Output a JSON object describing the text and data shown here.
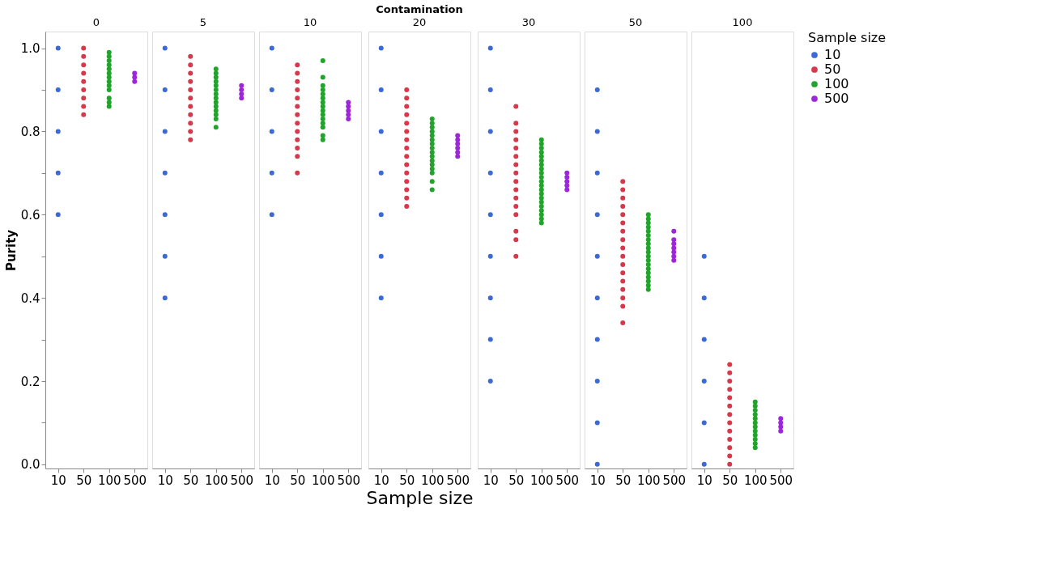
{
  "chart_data": [
    {
      "type": "scatter",
      "title": "0",
      "ylabel": "Purity",
      "categories": [
        "10",
        "50",
        "100",
        "500"
      ],
      "ylim": [
        -0.01,
        1.04
      ],
      "yticks": [
        {
          "value": 0,
          "label": "0.0"
        },
        {
          "value": 0.1,
          "label": null
        },
        {
          "value": 0.2,
          "label": "0.2"
        },
        {
          "value": 0.3,
          "label": null
        },
        {
          "value": 0.4,
          "label": "0.4"
        },
        {
          "value": 0.5,
          "label": null
        },
        {
          "value": 0.6,
          "label": "0.6"
        },
        {
          "value": 0.7,
          "label": null
        },
        {
          "value": 0.8,
          "label": "0.8"
        },
        {
          "value": 0.9,
          "label": null
        },
        {
          "value": 1,
          "label": "1.0"
        }
      ],
      "grid": false,
      "marker": "circle",
      "series": [
        {
          "color": "#3b6ad8",
          "x": [
            "10",
            "10",
            "10",
            "10",
            "10"
          ],
          "values": [
            1.0,
            0.9,
            0.8,
            0.7,
            0.6
          ]
        },
        {
          "color": "#d8384a",
          "x": [
            "50",
            "50",
            "50",
            "50",
            "50",
            "50",
            "50",
            "50",
            "50"
          ],
          "values": [
            1.0,
            0.98,
            0.96,
            0.94,
            0.92,
            0.9,
            0.88,
            0.86,
            0.84
          ]
        },
        {
          "color": "#22a32c",
          "x": [
            "100",
            "100",
            "100",
            "100",
            "100",
            "100",
            "100",
            "100",
            "100",
            "100",
            "100",
            "100",
            "100"
          ],
          "values": [
            0.99,
            0.98,
            0.97,
            0.96,
            0.95,
            0.94,
            0.93,
            0.92,
            0.91,
            0.9,
            0.88,
            0.87,
            0.86
          ]
        },
        {
          "color": "#9b27d8",
          "x": [
            "500",
            "500",
            "500"
          ],
          "values": [
            0.94,
            0.93,
            0.92
          ]
        }
      ]
    },
    {
      "type": "scatter",
      "title": "5",
      "categories": [
        "10",
        "50",
        "100",
        "500"
      ],
      "ylim": [
        -0.01,
        1.04
      ],
      "tick_labels": "x",
      "grid": false,
      "marker": "circle",
      "series": [
        {
          "color": "#3b6ad8",
          "x": [
            "10",
            "10",
            "10",
            "10",
            "10",
            "10",
            "10"
          ],
          "values": [
            1.0,
            0.9,
            0.8,
            0.7,
            0.6,
            0.5,
            0.4
          ]
        },
        {
          "color": "#d8384a",
          "x": [
            "50",
            "50",
            "50",
            "50",
            "50",
            "50",
            "50",
            "50",
            "50",
            "50",
            "50"
          ],
          "values": [
            0.98,
            0.96,
            0.94,
            0.92,
            0.9,
            0.88,
            0.86,
            0.84,
            0.82,
            0.8,
            0.78
          ]
        },
        {
          "color": "#22a32c",
          "x": [
            "100",
            "100",
            "100",
            "100",
            "100",
            "100",
            "100",
            "100",
            "100",
            "100",
            "100",
            "100",
            "100",
            "100"
          ],
          "values": [
            0.95,
            0.94,
            0.93,
            0.92,
            0.91,
            0.9,
            0.89,
            0.88,
            0.87,
            0.86,
            0.85,
            0.84,
            0.83,
            0.81
          ]
        },
        {
          "color": "#9b27d8",
          "x": [
            "500",
            "500",
            "500",
            "500"
          ],
          "values": [
            0.91,
            0.9,
            0.89,
            0.88
          ]
        }
      ]
    },
    {
      "type": "scatter",
      "title": "10",
      "categories": [
        "10",
        "50",
        "100",
        "500"
      ],
      "ylim": [
        -0.01,
        1.04
      ],
      "tick_labels": "x",
      "grid": false,
      "marker": "circle",
      "series": [
        {
          "color": "#3b6ad8",
          "x": [
            "10",
            "10",
            "10",
            "10",
            "10"
          ],
          "values": [
            1.0,
            0.9,
            0.8,
            0.7,
            0.6
          ]
        },
        {
          "color": "#d8384a",
          "x": [
            "50",
            "50",
            "50",
            "50",
            "50",
            "50",
            "50",
            "50",
            "50",
            "50",
            "50",
            "50",
            "50"
          ],
          "values": [
            0.96,
            0.94,
            0.92,
            0.9,
            0.88,
            0.86,
            0.84,
            0.82,
            0.8,
            0.78,
            0.76,
            0.74,
            0.7
          ]
        },
        {
          "color": "#22a32c",
          "x": [
            "100",
            "100",
            "100",
            "100",
            "100",
            "100",
            "100",
            "100",
            "100",
            "100",
            "100",
            "100",
            "100",
            "100",
            "100"
          ],
          "values": [
            0.97,
            0.93,
            0.91,
            0.9,
            0.89,
            0.88,
            0.87,
            0.86,
            0.85,
            0.84,
            0.83,
            0.82,
            0.81,
            0.79,
            0.78
          ]
        },
        {
          "color": "#9b27d8",
          "x": [
            "500",
            "500",
            "500",
            "500",
            "500"
          ],
          "values": [
            0.87,
            0.86,
            0.85,
            0.84,
            0.83
          ]
        }
      ]
    },
    {
      "type": "scatter",
      "title": "20",
      "xlabel": "Sample size",
      "annotations": [
        "Contamination"
      ],
      "categories": [
        "10",
        "50",
        "100",
        "500"
      ],
      "ylim": [
        -0.01,
        1.04
      ],
      "tick_labels": "x",
      "grid": false,
      "marker": "circle",
      "series": [
        {
          "color": "#3b6ad8",
          "x": [
            "10",
            "10",
            "10",
            "10",
            "10",
            "10",
            "10"
          ],
          "values": [
            1.0,
            0.9,
            0.8,
            0.7,
            0.6,
            0.5,
            0.4
          ]
        },
        {
          "color": "#d8384a",
          "x": [
            "50",
            "50",
            "50",
            "50",
            "50",
            "50",
            "50",
            "50",
            "50",
            "50",
            "50",
            "50",
            "50",
            "50",
            "50"
          ],
          "values": [
            0.9,
            0.88,
            0.86,
            0.84,
            0.82,
            0.8,
            0.78,
            0.76,
            0.74,
            0.72,
            0.7,
            0.68,
            0.66,
            0.64,
            0.62
          ]
        },
        {
          "color": "#22a32c",
          "x": [
            "100",
            "100",
            "100",
            "100",
            "100",
            "100",
            "100",
            "100",
            "100",
            "100",
            "100",
            "100",
            "100",
            "100",
            "100",
            "100"
          ],
          "values": [
            0.83,
            0.82,
            0.81,
            0.8,
            0.79,
            0.78,
            0.77,
            0.76,
            0.75,
            0.74,
            0.73,
            0.72,
            0.71,
            0.7,
            0.68,
            0.66
          ]
        },
        {
          "color": "#9b27d8",
          "x": [
            "500",
            "500",
            "500",
            "500",
            "500",
            "500"
          ],
          "values": [
            0.79,
            0.78,
            0.77,
            0.76,
            0.75,
            0.74
          ]
        }
      ]
    },
    {
      "type": "scatter",
      "title": "30",
      "categories": [
        "10",
        "50",
        "100",
        "500"
      ],
      "ylim": [
        -0.01,
        1.04
      ],
      "tick_labels": "x",
      "grid": false,
      "marker": "circle",
      "series": [
        {
          "color": "#3b6ad8",
          "x": [
            "10",
            "10",
            "10",
            "10",
            "10",
            "10",
            "10",
            "10",
            "10"
          ],
          "values": [
            1.0,
            0.9,
            0.8,
            0.7,
            0.6,
            0.5,
            0.4,
            0.3,
            0.2
          ]
        },
        {
          "color": "#d8384a",
          "x": [
            "50",
            "50",
            "50",
            "50",
            "50",
            "50",
            "50",
            "50",
            "50",
            "50",
            "50",
            "50",
            "50",
            "50",
            "50",
            "50"
          ],
          "values": [
            0.86,
            0.82,
            0.8,
            0.78,
            0.76,
            0.74,
            0.72,
            0.7,
            0.68,
            0.66,
            0.64,
            0.62,
            0.6,
            0.56,
            0.54,
            0.5
          ]
        },
        {
          "color": "#22a32c",
          "x": [
            "100",
            "100",
            "100",
            "100",
            "100",
            "100",
            "100",
            "100",
            "100",
            "100",
            "100",
            "100",
            "100",
            "100",
            "100",
            "100",
            "100",
            "100",
            "100",
            "100",
            "100"
          ],
          "values": [
            0.78,
            0.77,
            0.76,
            0.75,
            0.74,
            0.73,
            0.72,
            0.71,
            0.7,
            0.69,
            0.68,
            0.67,
            0.66,
            0.65,
            0.64,
            0.63,
            0.62,
            0.61,
            0.6,
            0.59,
            0.58
          ]
        },
        {
          "color": "#9b27d8",
          "x": [
            "500",
            "500",
            "500",
            "500",
            "500"
          ],
          "values": [
            0.7,
            0.69,
            0.68,
            0.67,
            0.66
          ]
        }
      ]
    },
    {
      "type": "scatter",
      "title": "50",
      "categories": [
        "10",
        "50",
        "100",
        "500"
      ],
      "ylim": [
        -0.01,
        1.04
      ],
      "tick_labels": "x",
      "grid": false,
      "marker": "circle",
      "series": [
        {
          "color": "#3b6ad8",
          "x": [
            "10",
            "10",
            "10",
            "10",
            "10",
            "10",
            "10",
            "10",
            "10",
            "10"
          ],
          "values": [
            0.9,
            0.8,
            0.7,
            0.6,
            0.5,
            0.4,
            0.3,
            0.2,
            0.1,
            0.0
          ]
        },
        {
          "color": "#d8384a",
          "x": [
            "50",
            "50",
            "50",
            "50",
            "50",
            "50",
            "50",
            "50",
            "50",
            "50",
            "50",
            "50",
            "50",
            "50",
            "50",
            "50",
            "50"
          ],
          "values": [
            0.68,
            0.66,
            0.64,
            0.62,
            0.6,
            0.58,
            0.56,
            0.54,
            0.52,
            0.5,
            0.48,
            0.46,
            0.44,
            0.42,
            0.4,
            0.38,
            0.34
          ]
        },
        {
          "color": "#22a32c",
          "x": [
            "100",
            "100",
            "100",
            "100",
            "100",
            "100",
            "100",
            "100",
            "100",
            "100",
            "100",
            "100",
            "100",
            "100",
            "100",
            "100",
            "100",
            "100",
            "100"
          ],
          "values": [
            0.6,
            0.59,
            0.58,
            0.57,
            0.56,
            0.55,
            0.54,
            0.53,
            0.52,
            0.51,
            0.5,
            0.49,
            0.48,
            0.47,
            0.46,
            0.45,
            0.44,
            0.43,
            0.42
          ]
        },
        {
          "color": "#9b27d8",
          "x": [
            "500",
            "500",
            "500",
            "500",
            "500",
            "500",
            "500"
          ],
          "values": [
            0.56,
            0.54,
            0.53,
            0.52,
            0.51,
            0.5,
            0.49
          ]
        }
      ]
    },
    {
      "type": "scatter",
      "title": "100",
      "legend_title": "Sample size",
      "legend": "top right",
      "categories": [
        "10",
        "50",
        "100",
        "500"
      ],
      "ylim": [
        -0.01,
        1.04
      ],
      "tick_labels": "x",
      "grid": false,
      "marker": "circle",
      "series": [
        {
          "name": "10",
          "color": "#3b6ad8",
          "x": [
            "10",
            "10",
            "10",
            "10",
            "10",
            "10"
          ],
          "values": [
            0.5,
            0.4,
            0.3,
            0.2,
            0.1,
            0.0
          ]
        },
        {
          "name": "50",
          "color": "#d8384a",
          "x": [
            "50",
            "50",
            "50",
            "50",
            "50",
            "50",
            "50",
            "50",
            "50",
            "50",
            "50",
            "50",
            "50"
          ],
          "values": [
            0.24,
            0.22,
            0.2,
            0.18,
            0.16,
            0.14,
            0.12,
            0.1,
            0.08,
            0.06,
            0.04,
            0.02,
            0.0
          ]
        },
        {
          "name": "100",
          "color": "#22a32c",
          "x": [
            "100",
            "100",
            "100",
            "100",
            "100",
            "100",
            "100",
            "100",
            "100",
            "100",
            "100",
            "100"
          ],
          "values": [
            0.15,
            0.14,
            0.13,
            0.12,
            0.11,
            0.1,
            0.09,
            0.08,
            0.07,
            0.06,
            0.05,
            0.04
          ]
        },
        {
          "name": "500",
          "color": "#9b27d8",
          "x": [
            "500",
            "500",
            "500",
            "500"
          ],
          "values": [
            0.11,
            0.1,
            0.09,
            0.08
          ]
        }
      ]
    }
  ]
}
